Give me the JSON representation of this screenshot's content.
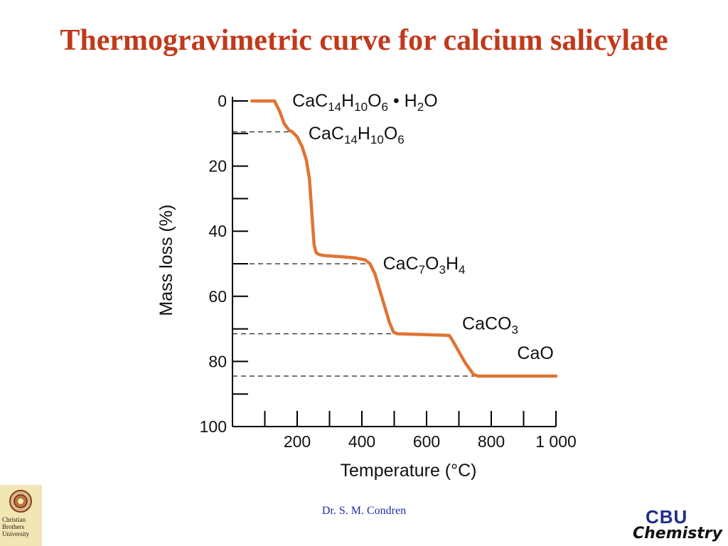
{
  "slide": {
    "title": "Thermogravimetric curve for calcium salicylate",
    "credit": "Dr. S. M. Condren"
  },
  "logos": {
    "university_lines": [
      "Christian",
      "Brothers",
      "University"
    ],
    "chem_top": "CBU",
    "chem_bottom": "Chemistry"
  },
  "colors": {
    "title": "#c1391b",
    "curve": "#e07434",
    "credit": "#1f2fa8",
    "axis": "#000000"
  },
  "chart_data": {
    "type": "line",
    "xlabel": "Temperature (°C)",
    "ylabel": "Mass loss (%)",
    "xlim": [
      0,
      1000
    ],
    "ylim": [
      0,
      100
    ],
    "y_inverted": true,
    "x_ticks": [
      100,
      200,
      300,
      400,
      500,
      600,
      700,
      800,
      900,
      1000
    ],
    "x_tick_labels": [
      {
        "value": 200,
        "label": "200"
      },
      {
        "value": 400,
        "label": "400"
      },
      {
        "value": 600,
        "label": "600"
      },
      {
        "value": 800,
        "label": "800"
      },
      {
        "value": 1000,
        "label": "1 000"
      }
    ],
    "y_ticks": [
      0,
      10,
      20,
      30,
      40,
      50,
      60,
      70,
      80,
      90
    ],
    "y_tick_labels": [
      {
        "value": 0,
        "label": "0"
      },
      {
        "value": 20,
        "label": "20"
      },
      {
        "value": 40,
        "label": "40"
      },
      {
        "value": 60,
        "label": "60"
      },
      {
        "value": 80,
        "label": "80"
      },
      {
        "value": 100,
        "label": "100"
      }
    ],
    "series": [
      {
        "x": [
          60,
          130,
          145,
          160,
          175,
          185,
          200,
          215,
          228,
          238,
          245,
          252,
          258,
          268,
          285,
          330,
          380,
          410,
          425,
          440,
          455,
          470,
          485,
          498,
          510,
          540,
          600,
          670,
          680,
          700,
          720,
          745,
          760,
          800,
          1000
        ],
        "y": [
          0,
          0,
          3,
          7,
          9,
          9.5,
          11,
          14,
          18,
          24,
          34,
          44,
          46.5,
          47.2,
          47.5,
          47.8,
          48.2,
          48.8,
          50,
          53,
          58,
          63,
          68,
          71,
          71.5,
          71.6,
          71.8,
          72,
          73.5,
          77,
          80.5,
          84,
          84.5,
          84.5,
          84.5
        ]
      }
    ],
    "reference_lines": [
      {
        "y": 9.5,
        "x_end": 185
      },
      {
        "y": 50,
        "x_end": 425
      },
      {
        "y": 71.5,
        "x_end": 510
      },
      {
        "y": 84.5,
        "x_end": 760
      }
    ],
    "annotations": [
      {
        "id": "hydrate",
        "parts": [
          [
            "CaC",
            ""
          ],
          [
            "14",
            "sub"
          ],
          [
            "H",
            ""
          ],
          [
            "10",
            "sub"
          ],
          [
            "O",
            ""
          ],
          [
            "6",
            "sub"
          ],
          [
            " • H",
            ""
          ],
          [
            "2",
            "sub"
          ],
          [
            "O",
            ""
          ]
        ],
        "x": 185,
        "y": 0
      },
      {
        "id": "anhydrous",
        "parts": [
          [
            "CaC",
            ""
          ],
          [
            "14",
            "sub"
          ],
          [
            "H",
            ""
          ],
          [
            "10",
            "sub"
          ],
          [
            "O",
            ""
          ],
          [
            "6",
            "sub"
          ]
        ],
        "x": 235,
        "y": 10
      },
      {
        "id": "intermediate",
        "parts": [
          [
            "CaC",
            ""
          ],
          [
            "7",
            "sub"
          ],
          [
            "O",
            ""
          ],
          [
            "3",
            "sub"
          ],
          [
            "H",
            ""
          ],
          [
            "4",
            "sub"
          ]
        ],
        "x": 465,
        "y": 50
      },
      {
        "id": "carbonate",
        "parts": [
          [
            "CaCO",
            ""
          ],
          [
            "3",
            "sub"
          ]
        ],
        "x": 710,
        "y": 68.5
      },
      {
        "id": "oxide",
        "parts": [
          [
            "CaO",
            ""
          ]
        ],
        "x": 880,
        "y": 77.5
      }
    ]
  }
}
